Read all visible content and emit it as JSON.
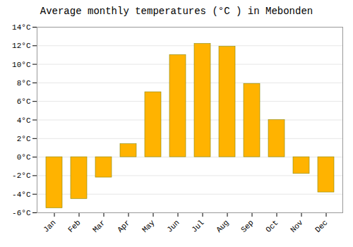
{
  "chart_data": {
    "type": "bar",
    "title": "Average monthly temperatures (°C ) in Mebonden",
    "categories": [
      "Jan",
      "Feb",
      "Mar",
      "Apr",
      "May",
      "Jun",
      "Jul",
      "Aug",
      "Sep",
      "Oct",
      "Nov",
      "Dec"
    ],
    "values": [
      -5.5,
      -4.5,
      -2.2,
      1.4,
      7.0,
      11.0,
      12.2,
      11.9,
      7.9,
      4.0,
      -1.8,
      -3.8
    ],
    "color": "#FFB300",
    "ylim": [
      -6,
      14
    ],
    "yticks": [
      {
        "value": -6,
        "label": "-6°C"
      },
      {
        "value": -4,
        "label": "-4°C"
      },
      {
        "value": -2,
        "label": "-2°C"
      },
      {
        "value": 0,
        "label": "0°C"
      },
      {
        "value": 2,
        "label": "2°C"
      },
      {
        "value": 4,
        "label": "4°C"
      },
      {
        "value": 6,
        "label": "6°C"
      },
      {
        "value": 8,
        "label": "8°C"
      },
      {
        "value": 10,
        "label": "10°C"
      },
      {
        "value": 12,
        "label": "12°C"
      },
      {
        "value": 14,
        "label": "14°C"
      }
    ],
    "grid": true
  }
}
